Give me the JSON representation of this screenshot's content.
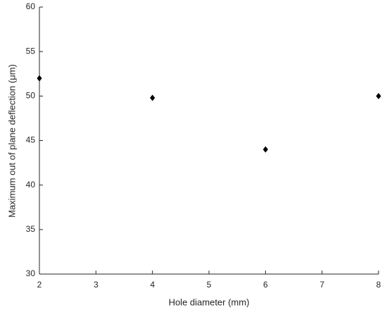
{
  "chart_data": {
    "type": "scatter",
    "xlabel": "Hole diameter (mm)",
    "ylabel": "Maximum out of plane deflection (μm)",
    "x": [
      2,
      4,
      6,
      8
    ],
    "values": [
      52,
      49.8,
      44,
      50
    ],
    "color": "#000000",
    "marker": "diamond",
    "xlim": [
      2,
      8
    ],
    "xticks": [
      2,
      3,
      4,
      5,
      6,
      7,
      8
    ],
    "ylim": [
      30,
      60
    ],
    "yticks": [
      30,
      35,
      40,
      45,
      50,
      55,
      60
    ],
    "grid": false
  }
}
